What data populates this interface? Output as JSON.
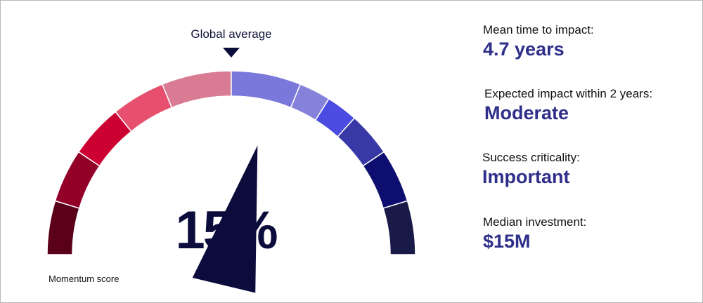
{
  "gauge": {
    "caption": "Momentum score",
    "value_label": "15%",
    "global_average_label": "Global average",
    "segment_colors": [
      "#5a0018",
      "#920028",
      "#cc0033",
      "#e6506e",
      "#d97b92",
      "#7a78da",
      "#8582dc",
      "#4c4ce2",
      "#3838a6",
      "#0e0e70",
      "#1a1a48"
    ],
    "divider_color": "#ffffff",
    "needle_color": "#0c0c3c"
  },
  "chart_data": {
    "type": "gauge",
    "title": "Momentum score",
    "value": 15,
    "value_label": "15%",
    "range": [
      -100,
      100
    ],
    "reference": {
      "label": "Global average",
      "value": 0
    }
  },
  "metrics": [
    {
      "label": "Mean time to impact:",
      "value": "4.7 years"
    },
    {
      "label": "Expected impact within 2 years:",
      "value": "Moderate"
    },
    {
      "label": "Success criticality:",
      "value": "Important"
    },
    {
      "label": "Median investment:",
      "value": "$15M"
    }
  ]
}
